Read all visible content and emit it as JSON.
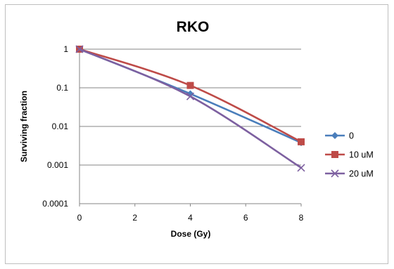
{
  "chart_data": {
    "type": "line",
    "title": "RKO",
    "xlabel": "Dose (Gy)",
    "ylabel": "Surviving fraction",
    "xlim": [
      0,
      8
    ],
    "ylim": [
      0.0001,
      1
    ],
    "yscale": "log",
    "x_ticks": [
      0,
      2,
      4,
      6,
      8
    ],
    "y_ticks": [
      1,
      0.1,
      0.01,
      0.001,
      0.0001
    ],
    "x_tick_labels": [
      "0",
      "2",
      "4",
      "6",
      "8"
    ],
    "y_tick_labels": [
      "1",
      "0.1",
      "0.01",
      "0.001",
      "0.0001"
    ],
    "grid": "horizontal major",
    "legend": "right",
    "x": [
      0,
      4,
      8
    ],
    "series": [
      {
        "name": "0",
        "values": [
          1,
          0.07,
          0.0038
        ],
        "color": "#4a7ebb",
        "marker": "diamond"
      },
      {
        "name": "10 uM",
        "values": [
          1,
          0.115,
          0.004
        ],
        "color": "#be4b48",
        "marker": "square"
      },
      {
        "name": "20 uM",
        "values": [
          1,
          0.06,
          0.00085
        ],
        "color": "#7d60a0",
        "marker": "x"
      }
    ]
  }
}
